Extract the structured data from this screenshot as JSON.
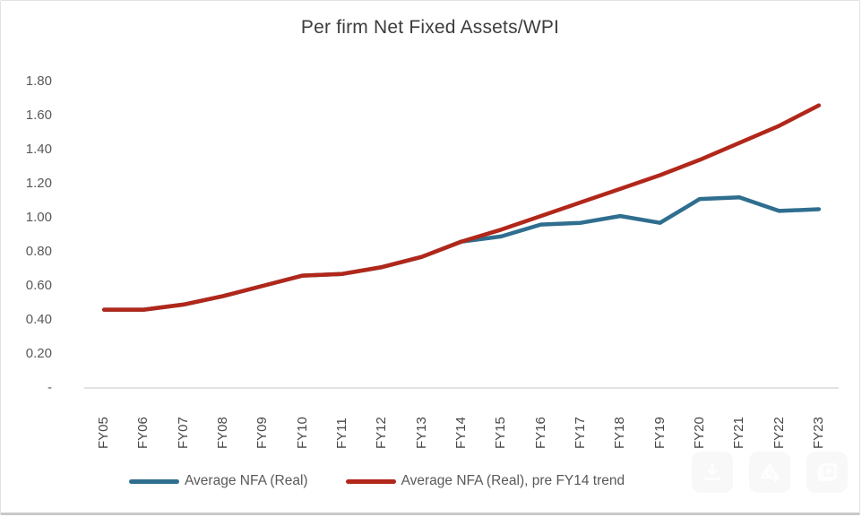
{
  "window": {
    "background": "#ffffff",
    "border_color": "#e2e2e2",
    "border_bottom_color": "#c9c9c9"
  },
  "chart_data": {
    "type": "line",
    "title": "Per firm Net Fixed Assets/WPI",
    "categories": [
      "FY05",
      "FY06",
      "FY07",
      "FY08",
      "FY09",
      "FY10",
      "FY11",
      "FY12",
      "FY13",
      "FY14",
      "FY15",
      "FY16",
      "FY17",
      "FY18",
      "FY19",
      "FY20",
      "FY21",
      "FY22",
      "FY23"
    ],
    "series": [
      {
        "name": "Average NFA (Real)",
        "color": "#2F6E8F",
        "values": [
          0.46,
          0.46,
          0.49,
          0.54,
          0.6,
          0.66,
          0.67,
          0.71,
          0.77,
          0.86,
          0.89,
          0.96,
          0.97,
          1.01,
          0.97,
          1.11,
          1.12,
          1.04,
          1.05
        ]
      },
      {
        "name": "Average NFA (Real), pre FY14 trend",
        "color": "#B1271A",
        "values": [
          0.46,
          0.46,
          0.49,
          0.54,
          0.6,
          0.66,
          0.67,
          0.71,
          0.77,
          0.86,
          0.93,
          1.01,
          1.09,
          1.17,
          1.25,
          1.34,
          1.44,
          1.54,
          1.66
        ]
      }
    ],
    "y_ticks": [
      {
        "label": "1.80",
        "value": 1.8
      },
      {
        "label": "1.60",
        "value": 1.6
      },
      {
        "label": "1.40",
        "value": 1.4
      },
      {
        "label": "1.20",
        "value": 1.2
      },
      {
        "label": "1.00",
        "value": 1.0
      },
      {
        "label": "0.80",
        "value": 0.8
      },
      {
        "label": "0.60",
        "value": 0.6
      },
      {
        "label": "0.40",
        "value": 0.4
      },
      {
        "label": "0.20",
        "value": 0.2
      },
      {
        "label": "-",
        "value": 0.0
      }
    ],
    "ylim": [
      0,
      1.9
    ],
    "grid": false,
    "legend_position": "bottom",
    "axis_line_color": "#d8d8d8",
    "axis_text_color": "#595959",
    "title_color": "#3d3d3d",
    "line_width": 4.5
  },
  "overlay_toolbar": {
    "icons": [
      "download-icon",
      "scan-add-icon",
      "album-add-icon"
    ]
  }
}
